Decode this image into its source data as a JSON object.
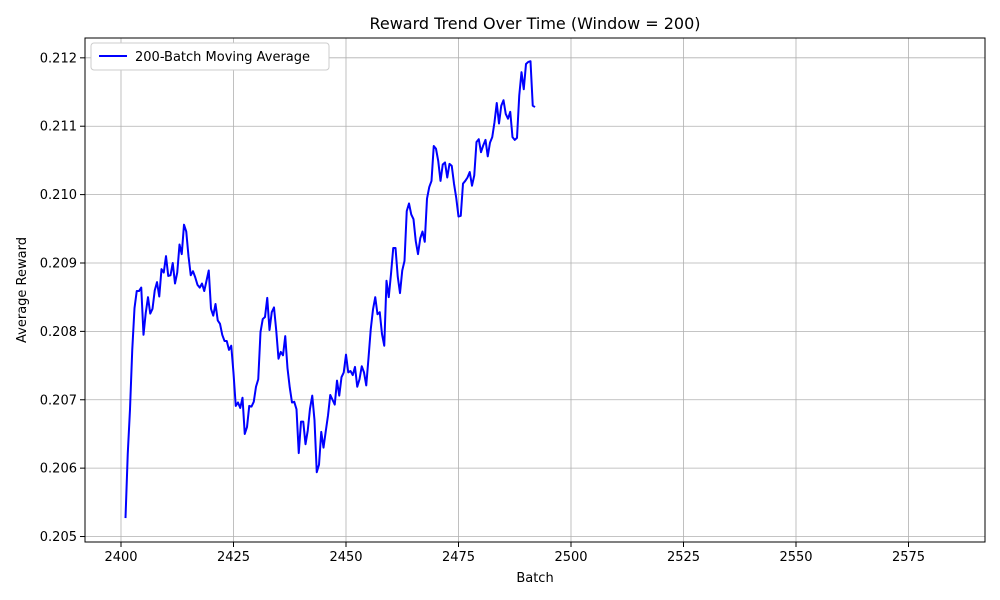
{
  "chart_data": {
    "type": "line",
    "title": "Reward Trend Over Time (Window = 200)",
    "xlabel": "Batch",
    "ylabel": "Average Reward",
    "xlim": [
      2392,
      2592
    ],
    "ylim": [
      0.20492,
      0.21229
    ],
    "xticks": [
      2400,
      2425,
      2450,
      2475,
      2500,
      2525,
      2550,
      2575
    ],
    "yticks": [
      0.205,
      0.206,
      0.207,
      0.208,
      0.209,
      0.21,
      0.211,
      0.212
    ],
    "ytick_labels": [
      "0.205",
      "0.206",
      "0.207",
      "0.208",
      "0.209",
      "0.210",
      "0.211",
      "0.212"
    ],
    "grid": true,
    "legend_position": "upper-left",
    "series": [
      {
        "name": "200-Batch Moving Average",
        "color": "#0000ff",
        "x_start": 2401,
        "x_step": 0.5,
        "values": [
          0.20527,
          0.20621,
          0.20686,
          0.20773,
          0.20834,
          0.20859,
          0.20859,
          0.20864,
          0.20795,
          0.20827,
          0.2085,
          0.20826,
          0.20833,
          0.2086,
          0.20872,
          0.20851,
          0.20891,
          0.20886,
          0.2091,
          0.20881,
          0.20882,
          0.209,
          0.2087,
          0.20886,
          0.20927,
          0.20913,
          0.20956,
          0.20946,
          0.2091,
          0.20882,
          0.20888,
          0.20879,
          0.20868,
          0.20864,
          0.2087,
          0.20859,
          0.20874,
          0.20889,
          0.20833,
          0.20823,
          0.2084,
          0.20816,
          0.20811,
          0.20795,
          0.20786,
          0.20786,
          0.20773,
          0.20779,
          0.20739,
          0.20691,
          0.20696,
          0.20688,
          0.20703,
          0.2065,
          0.2066,
          0.20691,
          0.2069,
          0.20697,
          0.20719,
          0.2073,
          0.20799,
          0.20818,
          0.20821,
          0.20849,
          0.20802,
          0.20828,
          0.20835,
          0.20801,
          0.2076,
          0.2077,
          0.20765,
          0.20793,
          0.20746,
          0.20718,
          0.20696,
          0.20697,
          0.20686,
          0.20622,
          0.20668,
          0.20668,
          0.20635,
          0.20655,
          0.20687,
          0.20706,
          0.2067,
          0.20594,
          0.20605,
          0.20653,
          0.2063,
          0.20654,
          0.20677,
          0.20707,
          0.207,
          0.20693,
          0.20728,
          0.20706,
          0.20733,
          0.2074,
          0.20766,
          0.2074,
          0.20742,
          0.20736,
          0.20748,
          0.20719,
          0.2073,
          0.20749,
          0.2074,
          0.20721,
          0.20761,
          0.20803,
          0.20832,
          0.2085,
          0.20825,
          0.20828,
          0.20796,
          0.20779,
          0.20874,
          0.2085,
          0.20884,
          0.20922,
          0.20922,
          0.2088,
          0.20856,
          0.20889,
          0.20903,
          0.20976,
          0.20987,
          0.20971,
          0.20964,
          0.20932,
          0.20913,
          0.20936,
          0.20946,
          0.20931,
          0.20994,
          0.21011,
          0.2102,
          0.21071,
          0.21067,
          0.21049,
          0.2102,
          0.21044,
          0.21047,
          0.21025,
          0.21045,
          0.21042,
          0.21016,
          0.20995,
          0.20968,
          0.20969,
          0.21016,
          0.2102,
          0.21025,
          0.21033,
          0.21013,
          0.21028,
          0.21077,
          0.21081,
          0.21062,
          0.21072,
          0.2108,
          0.21056,
          0.21076,
          0.21084,
          0.21106,
          0.21134,
          0.21104,
          0.2113,
          0.21138,
          0.21118,
          0.21111,
          0.21121,
          0.21084,
          0.2108,
          0.21083,
          0.21145,
          0.21179,
          0.21154,
          0.21191,
          0.21194,
          0.21195,
          0.2113,
          0.21128
        ]
      }
    ]
  }
}
